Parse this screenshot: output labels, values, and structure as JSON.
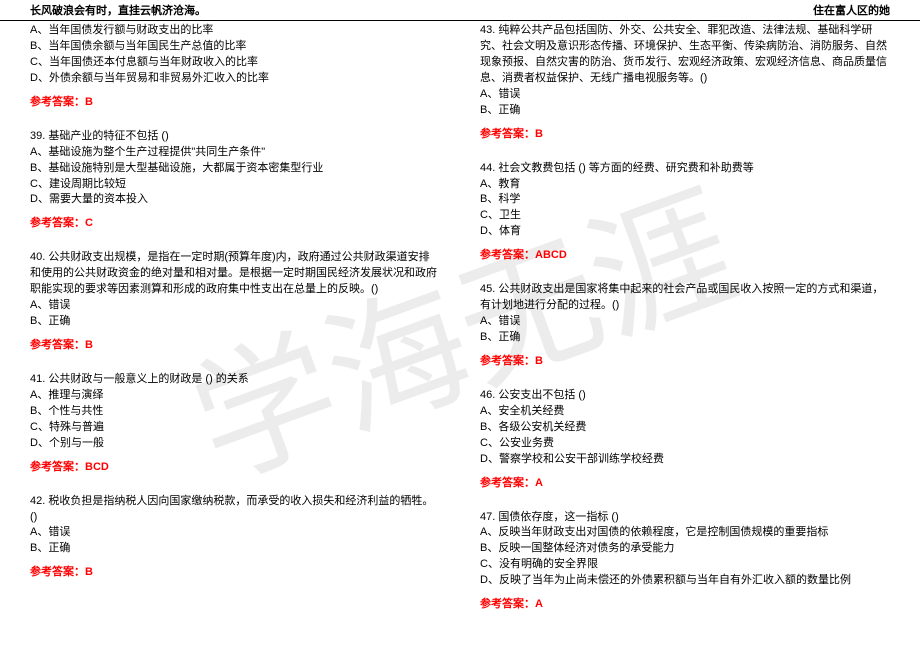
{
  "header": {
    "left": "长风破浪会有时，直挂云帆济沧海。",
    "right": "住在富人区的她"
  },
  "watermark": "学海无涯",
  "answer_label": "参考答案：",
  "left_initial_options": [
    "A、当年国债发行额与财政支出的比率",
    "B、当年国债余额与当年国民生产总值的比率",
    "C、当年国债还本付息额与当年财政收入的比率",
    "D、外债余额与当年贸易和非贸易外汇收入的比率"
  ],
  "left_initial_answer": "B",
  "left_questions": [
    {
      "num": "39.",
      "text": "基础产业的特征不包括 ()",
      "options": [
        "A、基础设施为整个生产过程提供\"共同生产条件\"",
        "B、基础设施特别是大型基础设施，大都属于资本密集型行业",
        "C、建设周期比较短",
        "D、需要大量的资本投入"
      ],
      "answer": "C"
    },
    {
      "num": "40.",
      "text": "公共财政支出规模，是指在一定时期(预算年度)内，政府通过公共财政渠道安排和使用的公共财政资金的绝对量和相对量。是根据一定时期国民经济发展状况和政府职能实现的要求等因素测算和形成的政府集中性支出在总量上的反映。()",
      "options": [
        "A、错误",
        "B、正确"
      ],
      "answer": "B"
    },
    {
      "num": "41.",
      "text": "公共财政与一般意义上的财政是 () 的关系",
      "options": [
        "A、推理与演绎",
        "B、个性与共性",
        "C、特殊与普遍",
        "D、个别与一般"
      ],
      "answer": "BCD"
    },
    {
      "num": "42.",
      "text": "税收负担是指纳税人因向国家缴纳税款，而承受的收入损失和经济利益的牺牲。()",
      "options": [
        "A、错误",
        "B、正确"
      ],
      "answer": "B"
    }
  ],
  "right_questions": [
    {
      "num": "43.",
      "text": "纯粹公共产品包括国防、外交、公共安全、罪犯改造、法律法规、基础科学研究、社会文明及意识形态传播、环境保护、生态平衡、传染病防治、消防服务、自然现象预报、自然灾害的防治、货币发行、宏观经济政策、宏观经济信息、商品质量信息、消费者权益保护、无线广播电视服务等。()",
      "options": [
        "A、错误",
        "B、正确"
      ],
      "answer": "B"
    },
    {
      "num": "44.",
      "text": "社会文教费包括 () 等方面的经费、研究费和补助费等",
      "options": [
        "A、教育",
        "B、科学",
        "C、卫生",
        "D、体育"
      ],
      "answer": "ABCD"
    },
    {
      "num": "45.",
      "text": "公共财政支出是国家将集中起来的社会产品或国民收入按照一定的方式和渠道，有计划地进行分配的过程。()",
      "options": [
        "A、错误",
        "B、正确"
      ],
      "answer": "B"
    },
    {
      "num": "46.",
      "text": "公安支出不包括 ()",
      "options": [
        "A、安全机关经费",
        "B、各级公安机关经费",
        "C、公安业务费",
        "D、警察学校和公安干部训练学校经费"
      ],
      "answer": "A"
    },
    {
      "num": "47.",
      "text": "国债依存度，这一指标 ()",
      "options": [
        "A、反映当年财政支出对国债的依赖程度，它是控制国债规模的重要指标",
        "B、反映一国整体经济对债务的承受能力",
        "C、没有明确的安全界限",
        "D、反映了当年为止尚未偿还的外债累积额与当年自有外汇收入额的数量比例"
      ],
      "answer": "A"
    }
  ]
}
